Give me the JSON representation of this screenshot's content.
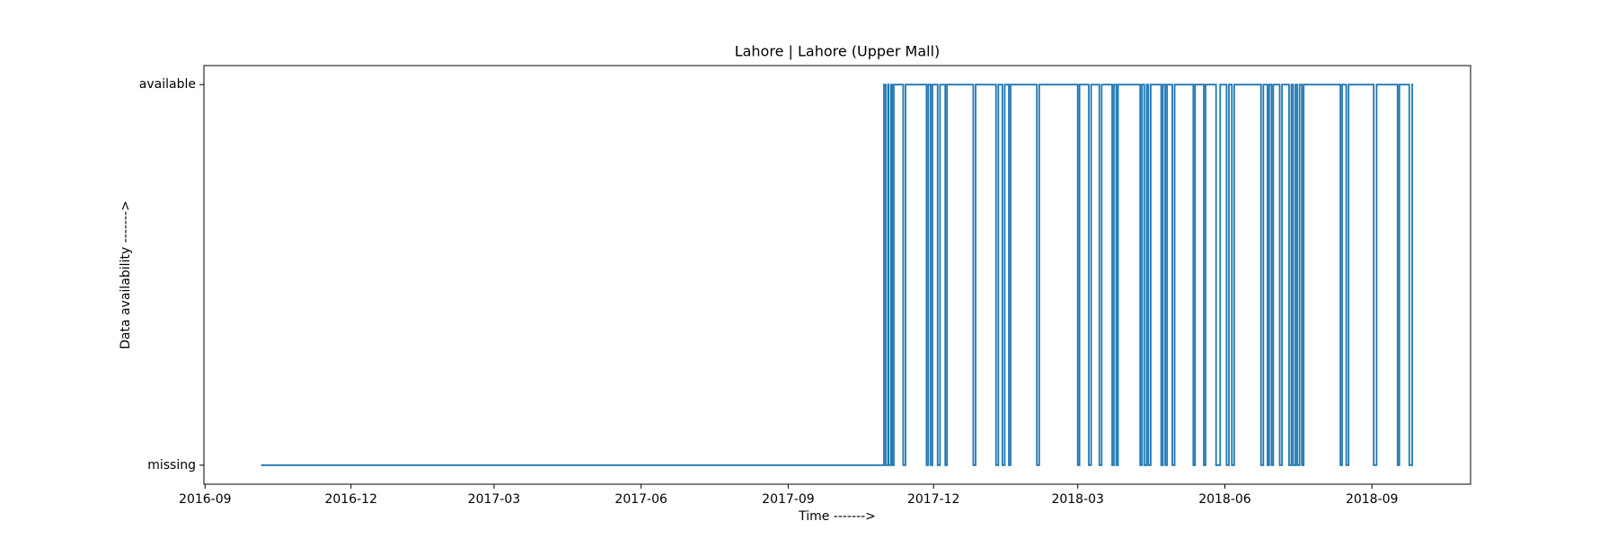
{
  "chart_data": {
    "type": "line",
    "drawstyle": "steps-post",
    "title": "Lahore | Lahore (Upper Mall)",
    "x_label": "Time ------->",
    "y_label": "Data availability ------->",
    "xlim": [
      2016.665,
      2018.835
    ],
    "xticks": [
      {
        "value": 2016.667,
        "label": "2016-09"
      },
      {
        "value": 2016.917,
        "label": "2016-12"
      },
      {
        "value": 2017.162,
        "label": "2017-03"
      },
      {
        "value": 2017.414,
        "label": "2017-06"
      },
      {
        "value": 2017.666,
        "label": "2017-09"
      },
      {
        "value": 2017.915,
        "label": "2017-12"
      },
      {
        "value": 2018.162,
        "label": "2018-03"
      },
      {
        "value": 2018.414,
        "label": "2018-06"
      },
      {
        "value": 2018.666,
        "label": "2018-09"
      }
    ],
    "ylim": [
      -0.05,
      1.05
    ],
    "yticks": [
      {
        "value": 0,
        "label": "missing"
      },
      {
        "value": 1,
        "label": "available"
      }
    ],
    "series": [
      {
        "color": "#1f77b4",
        "x": [
          2016.763,
          2017.83,
          2017.833,
          2017.837,
          2017.838,
          2017.842,
          2017.844,
          2017.847,
          2017.863,
          2017.867,
          2017.903,
          2017.906,
          2017.91,
          2017.913,
          2017.922,
          2017.926,
          2017.935,
          2017.938,
          2017.983,
          2017.987,
          2018.022,
          2018.026,
          2018.033,
          2018.037,
          2018.044,
          2018.047,
          2018.092,
          2018.096,
          2018.162,
          2018.165,
          2018.181,
          2018.185,
          2018.199,
          2018.203,
          2018.221,
          2018.224,
          2018.228,
          2018.231,
          2018.269,
          2018.272,
          2018.276,
          2018.28,
          2018.283,
          2018.287,
          2018.305,
          2018.308,
          2018.312,
          2018.315,
          2018.324,
          2018.328,
          2018.36,
          2018.363,
          2018.378,
          2018.381,
          2018.399,
          2018.406,
          2018.417,
          2018.421,
          2018.426,
          2018.43,
          2018.476,
          2018.48,
          2018.487,
          2018.49,
          2018.494,
          2018.497,
          2018.508,
          2018.512,
          2018.524,
          2018.528,
          2018.531,
          2018.535,
          2018.538,
          2018.542,
          2018.546,
          2018.549,
          2018.612,
          2018.615,
          2018.622,
          2018.626,
          2018.669,
          2018.674,
          2018.71,
          2018.713,
          2018.73,
          2018.735,
          2018.737
        ],
        "values": [
          0,
          1,
          0,
          1,
          0,
          1,
          0,
          1,
          0,
          1,
          0,
          1,
          0,
          1,
          0,
          1,
          0,
          1,
          0,
          1,
          0,
          1,
          0,
          1,
          0,
          1,
          0,
          1,
          0,
          1,
          0,
          1,
          0,
          1,
          0,
          1,
          0,
          1,
          0,
          1,
          0,
          1,
          0,
          1,
          0,
          1,
          0,
          1,
          0,
          1,
          0,
          1,
          0,
          1,
          0,
          1,
          0,
          1,
          0,
          1,
          0,
          1,
          0,
          1,
          0,
          1,
          0,
          1,
          0,
          1,
          0,
          1,
          0,
          1,
          0,
          1,
          0,
          1,
          0,
          1,
          0,
          1,
          0,
          1,
          0,
          1,
          1
        ]
      }
    ]
  }
}
